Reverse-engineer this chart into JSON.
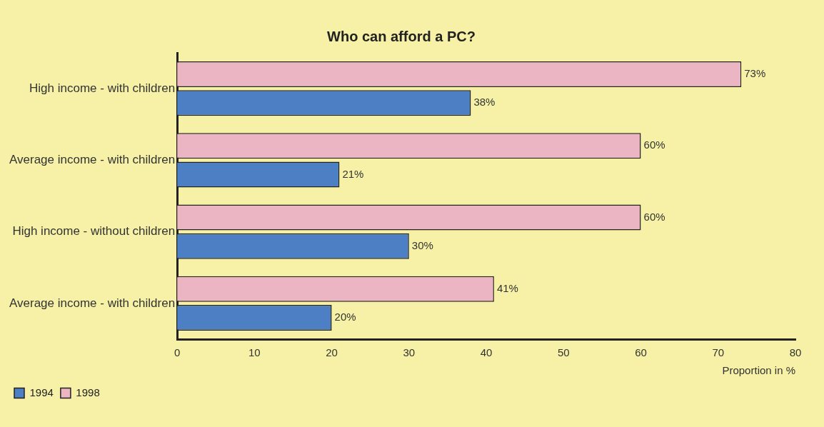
{
  "chart_data": {
    "type": "bar",
    "orientation": "horizontal",
    "title": "Who can afford a PC?",
    "xlabel": "Proportion in %",
    "categories": [
      "High income - with children",
      "Average income - with children",
      "High income - without children",
      "Average income - with children"
    ],
    "series": [
      {
        "name": "1994",
        "color": "#4d7fc4",
        "values": [
          38,
          21,
          30,
          20
        ],
        "value_labels": [
          "38%",
          "21%",
          "30%",
          "20%"
        ]
      },
      {
        "name": "1998",
        "color": "#ebb5c3",
        "values": [
          73,
          60,
          60,
          41
        ],
        "value_labels": [
          "73%",
          "60%",
          "60%",
          "41%"
        ]
      }
    ],
    "xlim": [
      0,
      80
    ],
    "xticks": [
      0,
      10,
      20,
      30,
      40,
      50,
      60,
      70,
      80
    ],
    "grid": false,
    "legend": "bottom left"
  }
}
